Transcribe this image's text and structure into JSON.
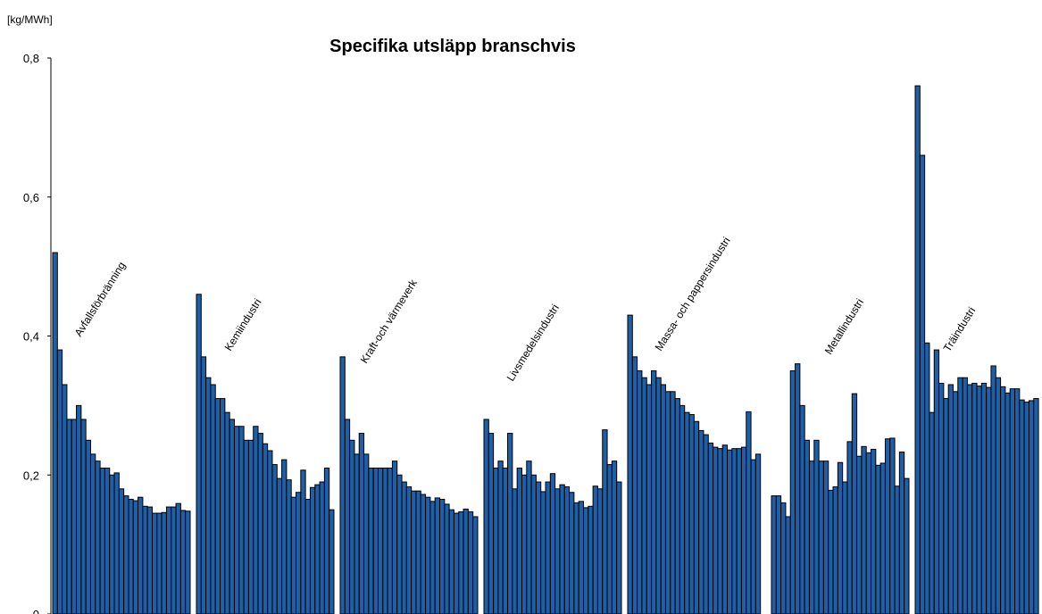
{
  "chart_data": {
    "type": "bar",
    "title": "Specifika utsläpp branschvis",
    "y_label": "[kg/MWh]",
    "color": "#1f5fa6",
    "ylim": [
      0,
      0.8
    ],
    "yticks": [
      0,
      {
        "value": 0.2,
        "label": "0,2"
      },
      {
        "value": 0.4,
        "label": "0,4"
      },
      {
        "value": 0.6,
        "label": "0,6"
      },
      {
        "value": 0.8,
        "label": "0,8"
      }
    ],
    "series": [
      {
        "name": "Avfallsförbränning",
        "values": [
          0.52,
          0.38,
          0.33,
          0.28,
          0.28,
          0.3,
          0.28,
          0.25,
          0.23,
          0.22,
          0.21,
          0.21,
          0.2,
          0.203,
          0.18,
          0.17,
          0.165,
          0.163,
          0.168,
          0.155,
          0.154,
          0.145,
          0.145,
          0.146,
          0.154,
          0.154,
          0.159,
          0.149,
          0.148
        ]
      },
      {
        "name": "Kemiindustri",
        "values": [
          0.46,
          0.37,
          0.34,
          0.33,
          0.31,
          0.31,
          0.29,
          0.28,
          0.27,
          0.27,
          0.25,
          0.25,
          0.27,
          0.26,
          0.245,
          0.235,
          0.215,
          0.195,
          0.222,
          0.193,
          0.168,
          0.175,
          0.207,
          0.165,
          0.182,
          0.186,
          0.19,
          0.21,
          0.15
        ]
      },
      {
        "name": "Kraft-och värmeverk",
        "values": [
          0.37,
          0.28,
          0.25,
          0.23,
          0.26,
          0.23,
          0.21,
          0.21,
          0.21,
          0.21,
          0.21,
          0.22,
          0.2,
          0.19,
          0.183,
          0.177,
          0.177,
          0.172,
          0.168,
          0.162,
          0.167,
          0.165,
          0.158,
          0.15,
          0.145,
          0.147,
          0.151,
          0.147,
          0.14
        ]
      },
      {
        "name": "Livsmedelsindustri",
        "values": [
          0.28,
          0.26,
          0.21,
          0.22,
          0.21,
          0.26,
          0.18,
          0.21,
          0.2,
          0.22,
          0.2,
          0.19,
          0.176,
          0.19,
          0.202,
          0.18,
          0.186,
          0.183,
          0.175,
          0.16,
          0.162,
          0.153,
          0.155,
          0.184,
          0.18,
          0.265,
          0.215,
          0.22,
          0.19
        ]
      },
      {
        "name": "Massa- och pappersindustri",
        "values": [
          0.43,
          0.37,
          0.35,
          0.34,
          0.33,
          0.35,
          0.34,
          0.33,
          0.32,
          0.32,
          0.31,
          0.3,
          0.29,
          0.287,
          0.277,
          0.264,
          0.258,
          0.246,
          0.24,
          0.238,
          0.243,
          0.236,
          0.238,
          0.238,
          0.24,
          0.291,
          0.222,
          0.23
        ]
      },
      {
        "name": "Metallindustri",
        "values": [
          0.17,
          0.17,
          0.16,
          0.14,
          0.35,
          0.36,
          0.3,
          0.25,
          0.22,
          0.25,
          0.22,
          0.22,
          0.178,
          0.183,
          0.218,
          0.19,
          0.248,
          0.317,
          0.227,
          0.241,
          0.232,
          0.237,
          0.214,
          0.217,
          0.252,
          0.253,
          0.184,
          0.233,
          0.195
        ]
      },
      {
        "name": "Träindustri",
        "values": [
          0.76,
          0.66,
          0.39,
          0.29,
          0.38,
          0.332,
          0.31,
          0.33,
          0.32,
          0.34,
          0.34,
          0.33,
          0.332,
          0.328,
          0.332,
          0.326,
          0.357,
          0.34,
          0.327,
          0.318,
          0.324,
          0.324,
          0.308,
          0.305,
          0.307,
          0.31
        ]
      }
    ]
  }
}
